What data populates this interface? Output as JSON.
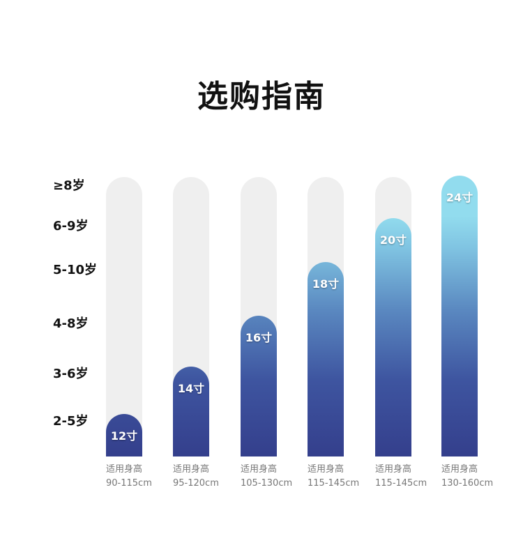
{
  "title": "选购指南",
  "chart_data": {
    "type": "bar",
    "title": "选购指南",
    "categories": [
      "12寸",
      "14寸",
      "16寸",
      "18寸",
      "20寸",
      "24寸"
    ],
    "age_levels": [
      "2-5岁",
      "3-6岁",
      "4-8岁",
      "5-10岁",
      "6-9岁",
      "≥8岁"
    ],
    "height_caption": "适用身高",
    "heights": [
      "90-115cm",
      "95-120cm",
      "105-130cm",
      "115-145cm",
      "115-145cm",
      "130-160cm"
    ],
    "colors": {
      "bar_bottom": "#343f8c",
      "bar_top": "#92dcee",
      "track": "#efefef"
    }
  }
}
